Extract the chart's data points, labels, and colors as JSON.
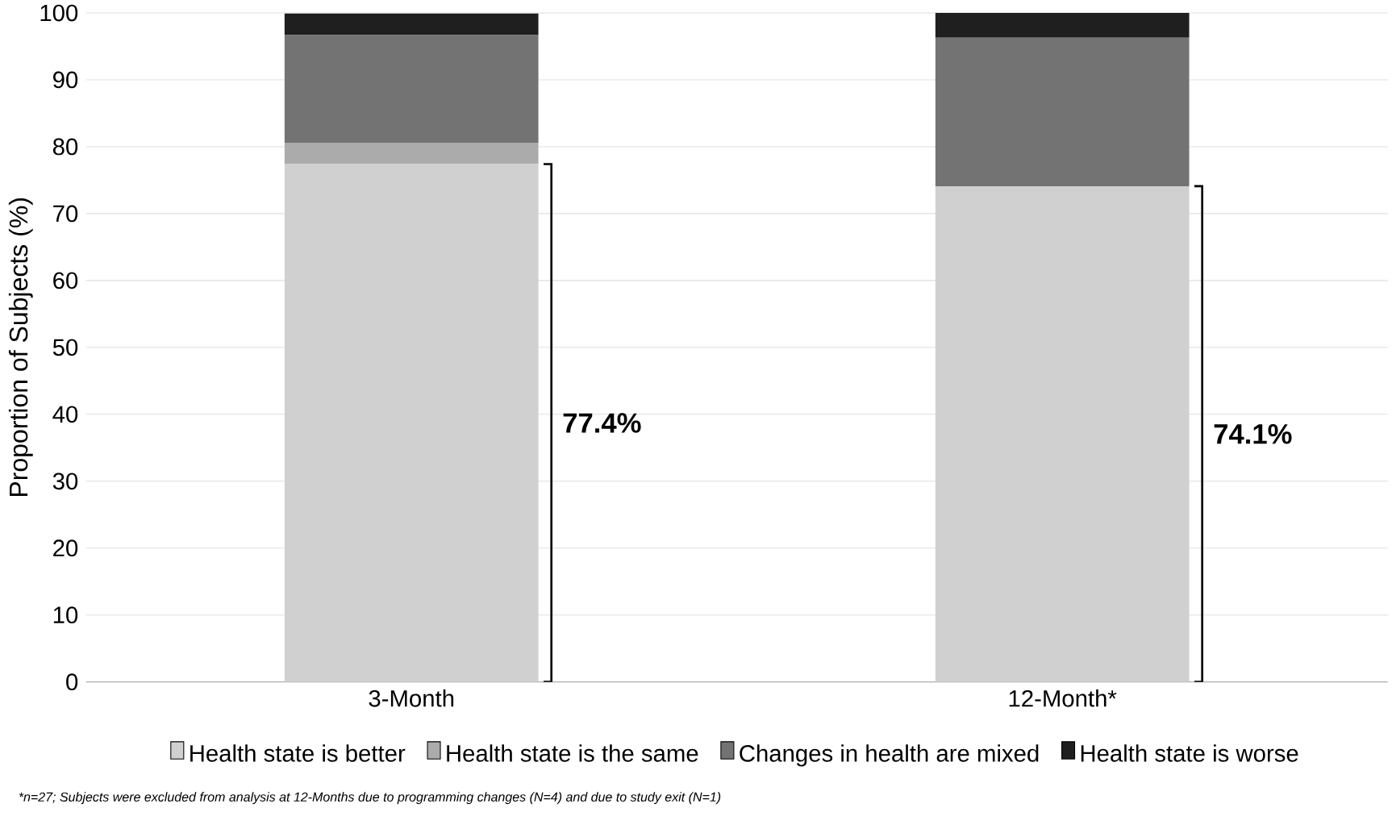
{
  "chart_data": {
    "type": "bar",
    "stacked": true,
    "ylabel": "Proportion of Subjects (%)",
    "categories": [
      "3-Month",
      "12-Month*"
    ],
    "series": [
      {
        "name": "Health state is better",
        "color": "#d0d0d0",
        "values": [
          77.4,
          74.1
        ]
      },
      {
        "name": "Health state is the same",
        "color": "#ababab",
        "values": [
          3.2,
          0
        ]
      },
      {
        "name": "Changes in health are mixed",
        "color": "#737373",
        "values": [
          16.1,
          22.2
        ]
      },
      {
        "name": "Health state is worse",
        "color": "#1f1f1f",
        "values": [
          3.2,
          3.7
        ]
      }
    ],
    "ylim": [
      0,
      100
    ],
    "yticks": [
      0,
      10,
      20,
      30,
      40,
      50,
      60,
      70,
      80,
      90,
      100
    ],
    "grid": "y",
    "legend": "bottom",
    "annotations": [
      "77.4%",
      "74.1%",
      "*n=27; Subjects were excluded from analysis at 12-Months due to programming changes (N=4) and due to study exit (N=1)"
    ]
  }
}
